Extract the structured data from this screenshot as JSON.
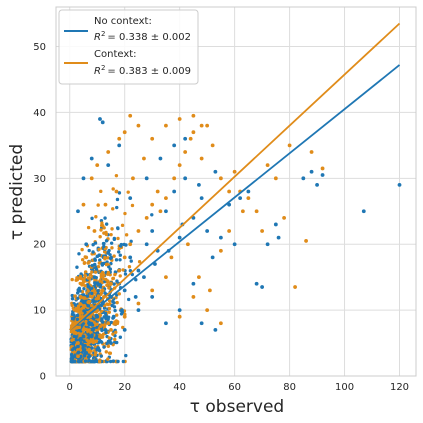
{
  "chart_data": {
    "type": "scatter",
    "xlabel": "τ observed",
    "ylabel": "τ predicted",
    "xlim": [
      -5,
      126
    ],
    "ylim": [
      0,
      56
    ],
    "x_ticks": [
      0,
      20,
      40,
      60,
      80,
      100,
      120
    ],
    "y_ticks": [
      0,
      10,
      20,
      30,
      40,
      50
    ],
    "grid": true,
    "legend_position": "top-left",
    "legend_r2_prefix": "R",
    "legend_r2_exponent": "2",
    "series": [
      {
        "name": "No context:",
        "r2_value": "= 0.338 ± 0.002",
        "color": "#1f77b4",
        "fit_line": {
          "x": [
            0,
            120
          ],
          "y": [
            7.0,
            47.2
          ]
        },
        "points": [
          [
            3,
            4.5
          ],
          [
            5,
            6
          ],
          [
            7,
            8
          ],
          [
            10,
            9
          ],
          [
            12,
            11
          ],
          [
            15,
            12
          ],
          [
            18,
            14
          ],
          [
            20,
            13
          ],
          [
            22,
            18
          ],
          [
            25,
            16
          ],
          [
            28,
            20
          ],
          [
            30,
            22
          ],
          [
            32,
            19
          ],
          [
            35,
            25
          ],
          [
            38,
            28
          ],
          [
            40,
            21
          ],
          [
            42,
            30
          ],
          [
            45,
            24
          ],
          [
            48,
            27
          ],
          [
            50,
            22
          ],
          [
            52,
            18
          ],
          [
            55,
            21
          ],
          [
            58,
            26
          ],
          [
            60,
            20
          ],
          [
            62,
            27
          ],
          [
            65,
            28
          ],
          [
            68,
            14
          ],
          [
            70,
            13.5
          ],
          [
            72,
            20
          ],
          [
            75,
            23
          ],
          [
            76,
            21
          ],
          [
            85,
            30
          ],
          [
            88,
            31
          ],
          [
            90,
            29
          ],
          [
            92,
            30.5
          ],
          [
            107,
            25
          ],
          [
            120,
            29
          ],
          [
            11,
            39
          ],
          [
            12,
            38.5
          ],
          [
            5,
            30
          ],
          [
            8,
            33
          ],
          [
            14,
            32
          ],
          [
            18,
            35
          ],
          [
            3,
            25
          ],
          [
            6,
            20
          ],
          [
            9,
            15
          ],
          [
            25,
            10
          ],
          [
            30,
            12
          ],
          [
            35,
            8
          ],
          [
            40,
            10
          ],
          [
            45,
            14
          ],
          [
            48,
            8
          ],
          [
            53,
            7
          ],
          [
            15,
            5
          ],
          [
            20,
            7
          ],
          [
            22,
            27
          ],
          [
            28,
            30
          ],
          [
            33,
            33
          ],
          [
            38,
            35
          ],
          [
            42,
            36
          ],
          [
            2,
            3
          ],
          [
            4,
            5
          ],
          [
            6,
            3.5
          ],
          [
            8,
            6
          ],
          [
            10,
            4
          ],
          [
            13,
            7
          ],
          [
            16,
            9
          ],
          [
            19,
            10
          ],
          [
            24,
            12
          ],
          [
            27,
            15
          ],
          [
            31,
            17
          ],
          [
            36,
            19
          ],
          [
            41,
            23
          ],
          [
            47,
            29
          ],
          [
            53,
            31
          ]
        ]
      },
      {
        "name": "Context:",
        "r2_value": "= 0.383 ± 0.009",
        "color": "#e08c1a",
        "fit_line": {
          "x": [
            0,
            120
          ],
          "y": [
            7.0,
            53.5
          ]
        },
        "points": [
          [
            3,
            5
          ],
          [
            5,
            7
          ],
          [
            7,
            9
          ],
          [
            10,
            10
          ],
          [
            12,
            13
          ],
          [
            15,
            14
          ],
          [
            18,
            16
          ],
          [
            20,
            18
          ],
          [
            22,
            20
          ],
          [
            25,
            22
          ],
          [
            28,
            24
          ],
          [
            30,
            26
          ],
          [
            32,
            28
          ],
          [
            35,
            27
          ],
          [
            38,
            30
          ],
          [
            40,
            32
          ],
          [
            42,
            34
          ],
          [
            45,
            37
          ],
          [
            48,
            33
          ],
          [
            50,
            38
          ],
          [
            52,
            35
          ],
          [
            55,
            30
          ],
          [
            58,
            28
          ],
          [
            60,
            31
          ],
          [
            62,
            28
          ],
          [
            65,
            27
          ],
          [
            68,
            25
          ],
          [
            70,
            22
          ],
          [
            72,
            32
          ],
          [
            75,
            30
          ],
          [
            78,
            24
          ],
          [
            80,
            35
          ],
          [
            82,
            13.5
          ],
          [
            86,
            20.5
          ],
          [
            88,
            34
          ],
          [
            92,
            31.5
          ],
          [
            22,
            39.5
          ],
          [
            20,
            37
          ],
          [
            18,
            36
          ],
          [
            14,
            34
          ],
          [
            10,
            32
          ],
          [
            8,
            30
          ],
          [
            5,
            26
          ],
          [
            40,
            39
          ],
          [
            45,
            39.5
          ],
          [
            48,
            38
          ],
          [
            44,
            36
          ],
          [
            25,
            38
          ],
          [
            30,
            36
          ],
          [
            35,
            38
          ],
          [
            2,
            8
          ],
          [
            4,
            12
          ],
          [
            6,
            18
          ],
          [
            9,
            22
          ],
          [
            13,
            26
          ],
          [
            17,
            28
          ],
          [
            23,
            30
          ],
          [
            27,
            33
          ],
          [
            33,
            25
          ],
          [
            37,
            18
          ],
          [
            43,
            20
          ],
          [
            47,
            15
          ],
          [
            51,
            13
          ],
          [
            55,
            19
          ],
          [
            58,
            22
          ],
          [
            63,
            25
          ],
          [
            15,
            7
          ],
          [
            20,
            9
          ],
          [
            25,
            11
          ],
          [
            30,
            13
          ],
          [
            35,
            15
          ],
          [
            40,
            9
          ],
          [
            45,
            12
          ],
          [
            50,
            10
          ],
          [
            55,
            8
          ],
          [
            3,
            3
          ],
          [
            7,
            4
          ],
          [
            11,
            6
          ],
          [
            14,
            8
          ]
        ]
      }
    ]
  }
}
